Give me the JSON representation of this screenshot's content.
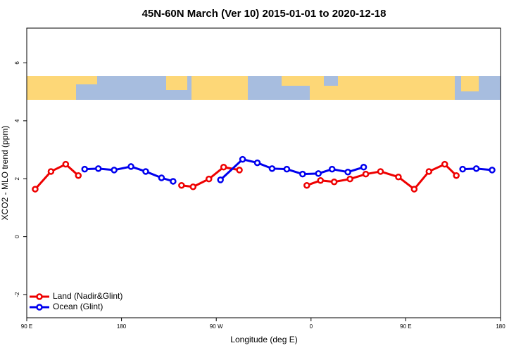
{
  "chart_data": {
    "type": "line",
    "title": "45N-60N March (Ver 10)   2015-01-01 to 2020-12-18",
    "x_label": "Longitude (deg E)",
    "y_label": "XCO2 - MLO trend (ppm)",
    "xlim": [
      90,
      540
    ],
    "xticks": [
      {
        "value": 90,
        "label": "90 E"
      },
      180,
      {
        "value": 270,
        "label": "90 W"
      },
      {
        "value": 360,
        "label": "0"
      },
      {
        "value": 450,
        "label": "90 E"
      },
      {
        "value": 540,
        "label": "180"
      }
    ],
    "ylim": [
      -2.8,
      7.2
    ],
    "yticks": [
      -2,
      0,
      2,
      4,
      6
    ],
    "legend": "bottom-left",
    "series": [
      {
        "name": "Land (Nadir&Glint)",
        "color": "#ee0000",
        "x": [
          98,
          113,
          127,
          139,
          null,
          237,
          248,
          263,
          277,
          292,
          null,
          356,
          369,
          382,
          397,
          412,
          426,
          443,
          458,
          472,
          487,
          498
        ],
        "values": [
          1.64,
          2.25,
          2.5,
          2.11,
          null,
          1.77,
          1.72,
          1.99,
          2.4,
          2.3,
          null,
          1.77,
          1.94,
          1.89,
          1.99,
          2.16,
          2.25,
          2.06,
          1.64,
          2.25,
          2.5,
          2.11
        ]
      },
      {
        "name": "Ocean (Glint)",
        "color": "#0000ee",
        "x": [
          145,
          158,
          173,
          189,
          203,
          218,
          229,
          null,
          274,
          295,
          309,
          323,
          337,
          352,
          367,
          380,
          395,
          410,
          null,
          504,
          517,
          532
        ],
        "values": [
          2.33,
          2.35,
          2.3,
          2.42,
          2.25,
          2.03,
          1.91,
          null,
          1.96,
          2.67,
          2.55,
          2.35,
          2.33,
          2.16,
          2.18,
          2.33,
          2.23,
          2.4,
          null,
          2.33,
          2.35,
          2.3
        ]
      }
    ]
  }
}
